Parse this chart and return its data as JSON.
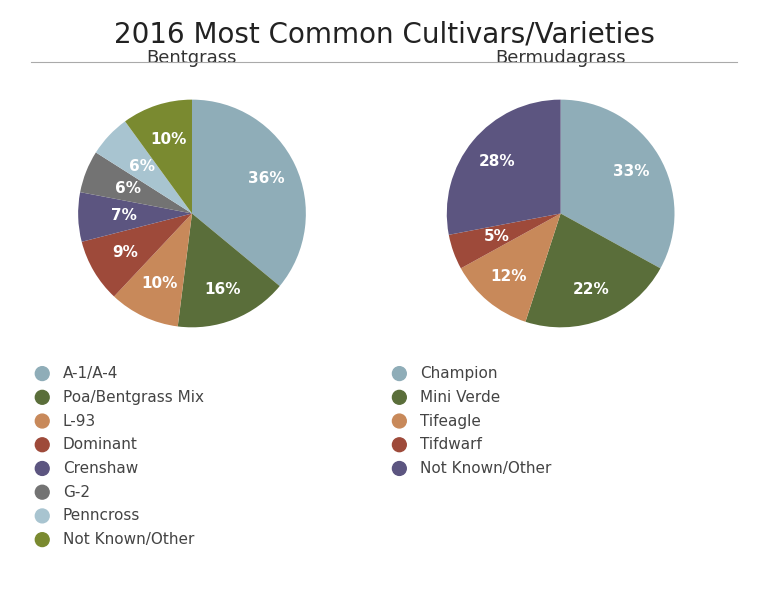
{
  "title": "2016 Most Common Cultivars/Varieties",
  "title_fontsize": 20,
  "background_color": "#ffffff",
  "bentgrass": {
    "label": "Bentgrass",
    "slices": [
      36,
      16,
      10,
      9,
      7,
      6,
      6,
      10
    ],
    "pct_labels": [
      "36%",
      "16%",
      "10%",
      "9%",
      "7%",
      "6%",
      "6%",
      "10%"
    ],
    "colors": [
      "#8fadb8",
      "#5a6e3a",
      "#c8895a",
      "#9e4a3a",
      "#5c5580",
      "#737373",
      "#a8c4d0",
      "#7a8a30"
    ],
    "legend_labels": [
      "A-1/A-4",
      "Poa/Bentgrass Mix",
      "L-93",
      "Dominant",
      "Crenshaw",
      "G-2",
      "Penncross",
      "Not Known/Other"
    ]
  },
  "bermudagrass": {
    "label": "Bermudagrass",
    "slices": [
      33,
      22,
      12,
      5,
      28
    ],
    "pct_labels": [
      "33%",
      "22%",
      "12%",
      "5%",
      "28%"
    ],
    "colors": [
      "#8fadb8",
      "#5a6e3a",
      "#c8895a",
      "#9e4a3a",
      "#5c5580"
    ],
    "legend_labels": [
      "Champion",
      "Mini Verde",
      "Tifeagle",
      "Tifdwarf",
      "Not Known/Other"
    ]
  },
  "pct_fontsize": 11,
  "legend_fontsize": 11,
  "subtitle_fontsize": 13
}
